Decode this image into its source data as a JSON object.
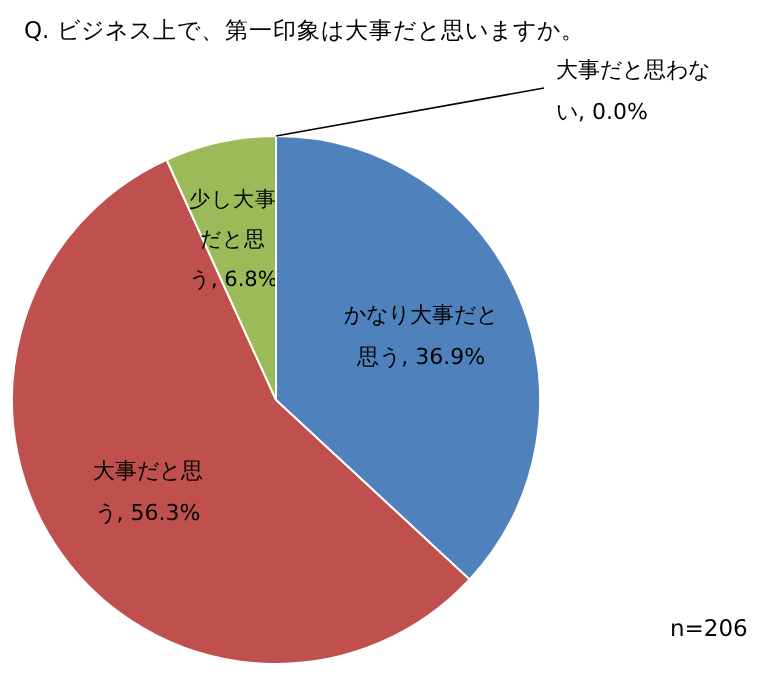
{
  "chart_data": {
    "type": "pie",
    "title": "Q. ビジネス上で、第一印象は大事だと思いますか。",
    "categories": [
      "かなり大事だと思う",
      "大事だと思う",
      "少し大事だと思う",
      "大事だと思わない"
    ],
    "values": [
      36.9,
      56.3,
      6.8,
      0.0
    ],
    "colors": [
      "#4f81bd",
      "#c0504d",
      "#9bbb59",
      "#8064a2"
    ],
    "value_labels": [
      ", 36.9%",
      ", 56.3%",
      ", 6.8%",
      ", 0.0%"
    ],
    "annotations": [
      "n=206"
    ]
  }
}
